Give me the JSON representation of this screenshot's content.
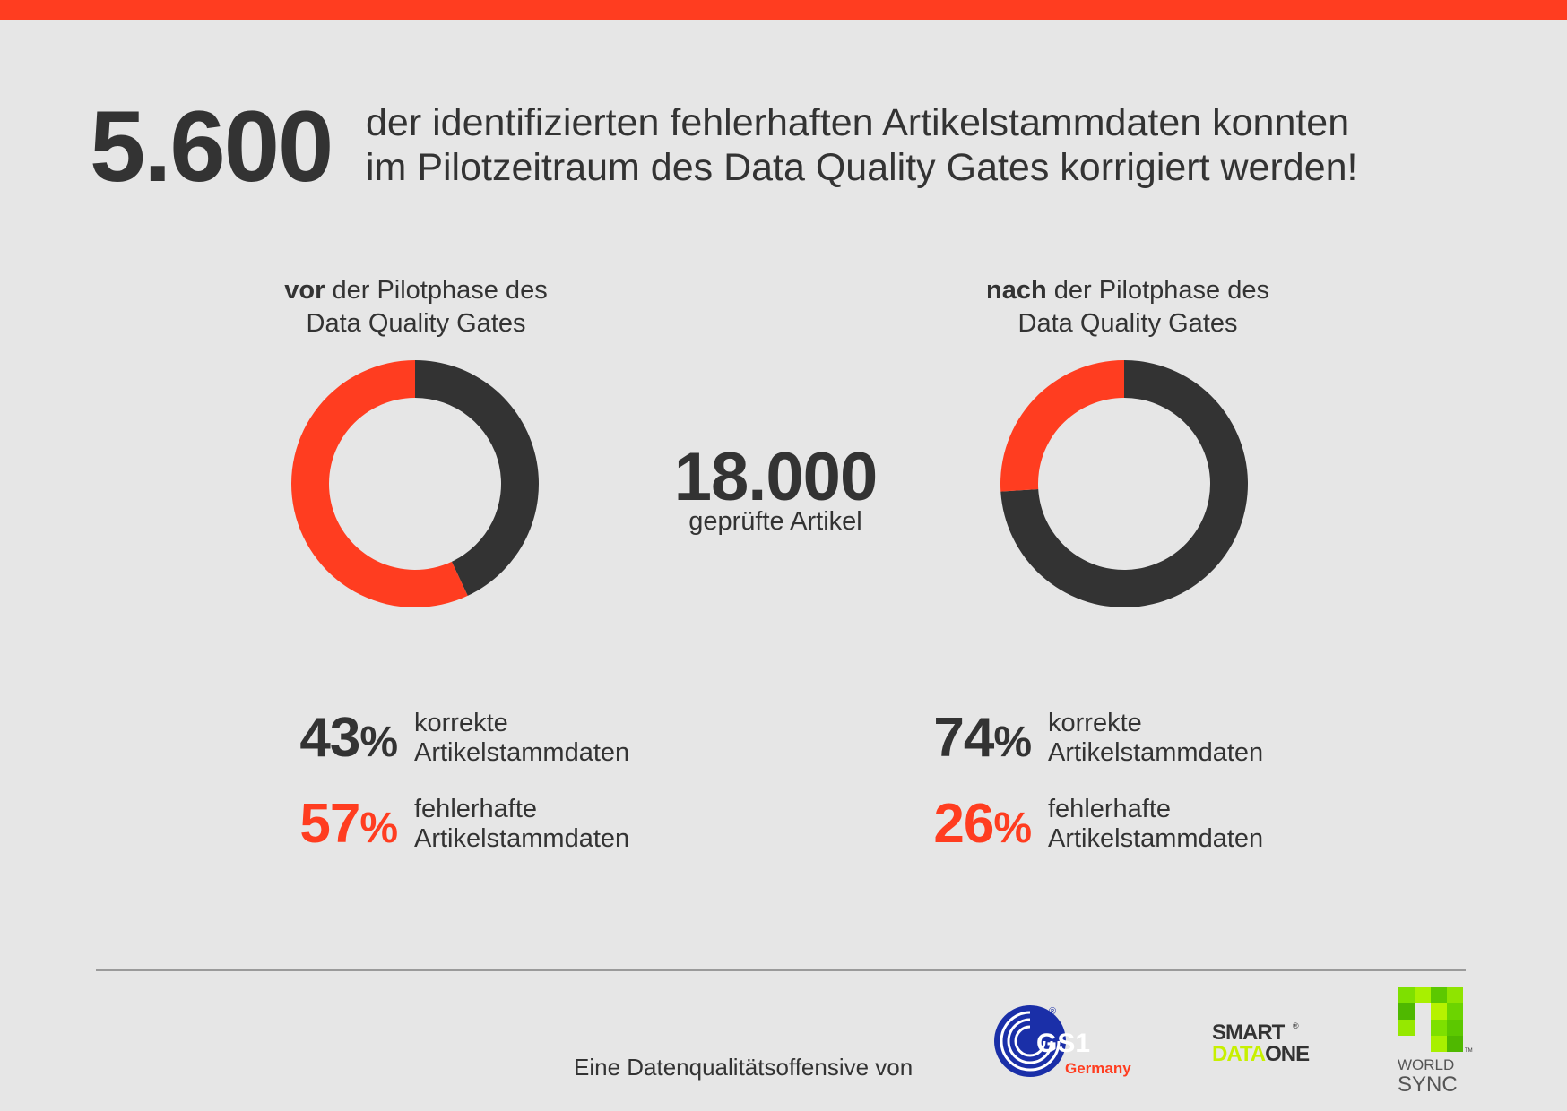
{
  "colors": {
    "accent": "#ff3d20",
    "dark": "#333333",
    "background": "#e6e6e6"
  },
  "headline": {
    "number": "5.600",
    "line1": "der identifizierten fehlerhaften Artikelstammdaten konnten",
    "line2": "im Pilotzeitraum des Data Quality Gates korrigiert werden!"
  },
  "center": {
    "total": "18.000",
    "label": "geprüfte Artikel"
  },
  "before": {
    "caption_bold": "vor",
    "caption_rest": " der Pilotphase des",
    "caption_line2": "Data Quality Gates",
    "stats": [
      {
        "value": "43",
        "unit": "%",
        "line1": "korrekte",
        "line2": "Artikelstammdaten"
      },
      {
        "value": "57",
        "unit": "%",
        "line1": "fehlerhafte",
        "line2": "Artikelstammdaten"
      }
    ]
  },
  "after": {
    "caption_bold": "nach",
    "caption_rest": " der Pilotphase des",
    "caption_line2": "Data Quality Gates",
    "stats": [
      {
        "value": "74",
        "unit": "%",
        "line1": "korrekte",
        "line2": "Artikelstammdaten"
      },
      {
        "value": "26",
        "unit": "%",
        "line1": "fehlerhafte",
        "line2": "Artikelstammdaten"
      }
    ]
  },
  "chart_data": [
    {
      "type": "pie",
      "title": "vor der Pilotphase des Data Quality Gates",
      "categories": [
        "korrekte Artikelstammdaten",
        "fehlerhafte Artikelstammdaten"
      ],
      "values": [
        43,
        57
      ],
      "colors": [
        "#333333",
        "#ff3d20"
      ]
    },
    {
      "type": "pie",
      "title": "nach der Pilotphase des Data Quality Gates",
      "categories": [
        "korrekte Artikelstammdaten",
        "fehlerhafte Artikelstammdaten"
      ],
      "values": [
        74,
        26
      ],
      "colors": [
        "#333333",
        "#ff3d20"
      ]
    }
  ],
  "footer": {
    "text": "Eine Datenqualitätsoffensive von",
    "logos": {
      "gs1": {
        "main": "GS1",
        "sub": "Germany",
        "registered": "®"
      },
      "smartdataone": {
        "line1": "SMART",
        "line2a": "DATA",
        "line2b": "ONE",
        "registered": "®"
      },
      "worldsync": {
        "line1": "WORLD",
        "line2": "SYNC",
        "tm": "TM"
      }
    }
  }
}
